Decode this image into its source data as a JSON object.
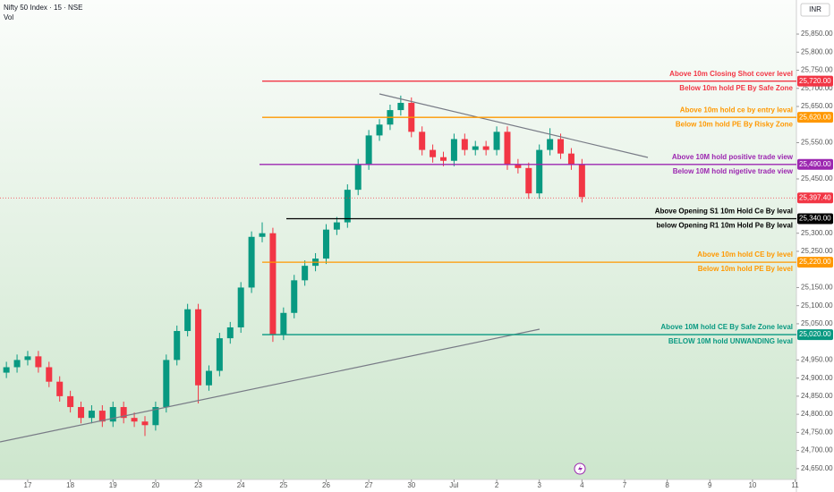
{
  "chart_data": {
    "type": "candlestick",
    "title": "Nifty 50 Index · 15 · NSE",
    "volume_label": "Vol",
    "currency": "INR",
    "up_color": "#089981",
    "down_color": "#f23645",
    "xlim": [
      -0.65,
      18.03
    ],
    "xticks": [
      {
        "value": 0,
        "label": "17"
      },
      {
        "value": 1,
        "label": "18"
      },
      {
        "value": 2,
        "label": "19"
      },
      {
        "value": 3,
        "label": "20"
      },
      {
        "value": 4,
        "label": "23"
      },
      {
        "value": 5,
        "label": "24"
      },
      {
        "value": 6,
        "label": "25"
      },
      {
        "value": 7,
        "label": "26"
      },
      {
        "value": 8,
        "label": "27"
      },
      {
        "value": 9,
        "label": "30"
      },
      {
        "value": 10,
        "label": "Jul"
      },
      {
        "value": 11,
        "label": "2"
      },
      {
        "value": 12,
        "label": "3"
      },
      {
        "value": 13,
        "label": "4"
      },
      {
        "value": 14,
        "label": "7"
      },
      {
        "value": 15,
        "label": "8"
      },
      {
        "value": 16,
        "label": "9"
      },
      {
        "value": 17,
        "label": "10"
      },
      {
        "value": 18,
        "label": "11"
      }
    ],
    "ylim": [
      24620,
      25944
    ],
    "yticks": [
      {
        "value": 25850,
        "label": "25,850.00"
      },
      {
        "value": 25800,
        "label": "25,800.00"
      },
      {
        "value": 25750,
        "label": "25,750.00"
      },
      {
        "value": 25700,
        "label": "25,700.00"
      },
      {
        "value": 25650,
        "label": "25,650.00"
      },
      {
        "value": 25550,
        "label": "25,550.00"
      },
      {
        "value": 25450,
        "label": "25,450.00"
      },
      {
        "value": 25300,
        "label": "25,300.00"
      },
      {
        "value": 25250,
        "label": "25,250.00"
      },
      {
        "value": 25150,
        "label": "25,150.00"
      },
      {
        "value": 25100,
        "label": "25,100.00"
      },
      {
        "value": 25050,
        "label": "25,050.00"
      },
      {
        "value": 24950,
        "label": "24,950.00"
      },
      {
        "value": 24900,
        "label": "24,900.00"
      },
      {
        "value": 24850,
        "label": "24,850.00"
      },
      {
        "value": 24800,
        "label": "24,800.00"
      },
      {
        "value": 24750,
        "label": "24,750.00"
      },
      {
        "value": 24700,
        "label": "24,700.00"
      },
      {
        "value": 24650,
        "label": "24,650.00"
      }
    ],
    "x": [
      -0.5,
      -0.25,
      0,
      0.25,
      0.5,
      0.75,
      1,
      1.25,
      1.5,
      1.75,
      2,
      2.25,
      2.5,
      2.75,
      3,
      3.25,
      3.5,
      3.75,
      4,
      4.25,
      4.5,
      4.75,
      5,
      5.25,
      5.5,
      5.75,
      6,
      6.25,
      6.5,
      6.75,
      7,
      7.25,
      7.5,
      7.75,
      8,
      8.25,
      8.5,
      8.75,
      9,
      9.25,
      9.5,
      9.75,
      10,
      10.25,
      10.5,
      10.75,
      11,
      11.25,
      11.5,
      11.75,
      12,
      12.25,
      12.5,
      12.75,
      13
    ],
    "open": [
      24915,
      24930,
      24950,
      24960,
      24930,
      24890,
      24850,
      24820,
      24790,
      24810,
      24780,
      24820,
      24790,
      24780,
      24770,
      24820,
      24950,
      25030,
      25090,
      24880,
      24920,
      25010,
      25040,
      25150,
      25290,
      25300,
      25020,
      25080,
      25170,
      25210,
      25230,
      25310,
      25330,
      25420,
      25490,
      25570,
      25600,
      25640,
      25660,
      25580,
      25530,
      25510,
      25500,
      25560,
      25530,
      25540,
      25530,
      25580,
      25490,
      25480,
      25410,
      25530,
      25560,
      25520,
      25490
    ],
    "high": [
      24945,
      24965,
      24975,
      24975,
      24945,
      24905,
      24865,
      24835,
      24825,
      24825,
      24835,
      24835,
      24805,
      24795,
      24835,
      24965,
      25045,
      25105,
      25105,
      24935,
      25025,
      25055,
      25165,
      25305,
      25330,
      25315,
      25095,
      25185,
      25225,
      25245,
      25325,
      25345,
      25435,
      25505,
      25585,
      25615,
      25655,
      25680,
      25675,
      25595,
      25545,
      25525,
      25575,
      25575,
      25555,
      25555,
      25595,
      25595,
      25505,
      25495,
      25545,
      25590,
      25575,
      25535,
      25505
    ],
    "low": [
      24900,
      24915,
      24935,
      24915,
      24875,
      24835,
      24805,
      24775,
      24775,
      24765,
      24765,
      24775,
      24765,
      24740,
      24755,
      24805,
      24935,
      25015,
      24830,
      24865,
      24905,
      24995,
      25025,
      25135,
      25275,
      25000,
      25005,
      25065,
      25155,
      25195,
      25215,
      25295,
      25315,
      25405,
      25475,
      25555,
      25585,
      25625,
      25565,
      25515,
      25495,
      25485,
      25485,
      25515,
      25515,
      25515,
      25515,
      25475,
      25465,
      25395,
      25395,
      25515,
      25505,
      25475,
      25385
    ],
    "close": [
      24930,
      24950,
      24960,
      24930,
      24890,
      24850,
      24820,
      24790,
      24810,
      24780,
      24820,
      24790,
      24780,
      24770,
      24820,
      24950,
      25030,
      25090,
      24880,
      24920,
      25010,
      25040,
      25150,
      25290,
      25300,
      25020,
      25080,
      25170,
      25210,
      25230,
      25310,
      25330,
      25420,
      25490,
      25570,
      25600,
      25640,
      25660,
      25580,
      25530,
      25510,
      25500,
      25560,
      25530,
      25540,
      25530,
      25580,
      25490,
      25480,
      25410,
      25530,
      25560,
      25520,
      25490,
      25400
    ],
    "last_price": {
      "value": 25397.4,
      "label": "25,397.40"
    },
    "levels": [
      {
        "price": {
          "value": 25720,
          "label": "25,720.00"
        },
        "color": "#f23645",
        "above": "Above 10m Closing Shot cover level",
        "below": "Below 10m hold PE By Safe Zone"
      },
      {
        "price": {
          "value": 25620,
          "label": "25,620.00"
        },
        "color": "#ff9800",
        "above": "Above 10m hold ce by entry leval",
        "below": "Below 10m hold PE By Risky Zone"
      },
      {
        "price": {
          "value": 25490,
          "label": "25,490.00"
        },
        "color": "#9c27b0",
        "above": "Above 10M hold positive trade view",
        "below": "Below 10M hold nigetive trade view"
      },
      {
        "price": {
          "value": 25340,
          "label": "25,340.00"
        },
        "color": "#000000",
        "above": "Above Opening S1 10m Hold Ce By leval",
        "below": "below Opening R1 10m Hold Pe By leval"
      },
      {
        "price": {
          "value": 25220,
          "label": "25,220.00"
        },
        "color": "#ff9800",
        "above": "Above 10m hold CE by level",
        "below": "Below 10m hold PE By level"
      },
      {
        "price": {
          "value": 25020,
          "label": "25,020.00"
        },
        "color": "#089981",
        "above": "Above 10M hold CE By Safe Zone leval",
        "below": "BELOW 10M hold UNWANDING leval"
      }
    ]
  }
}
